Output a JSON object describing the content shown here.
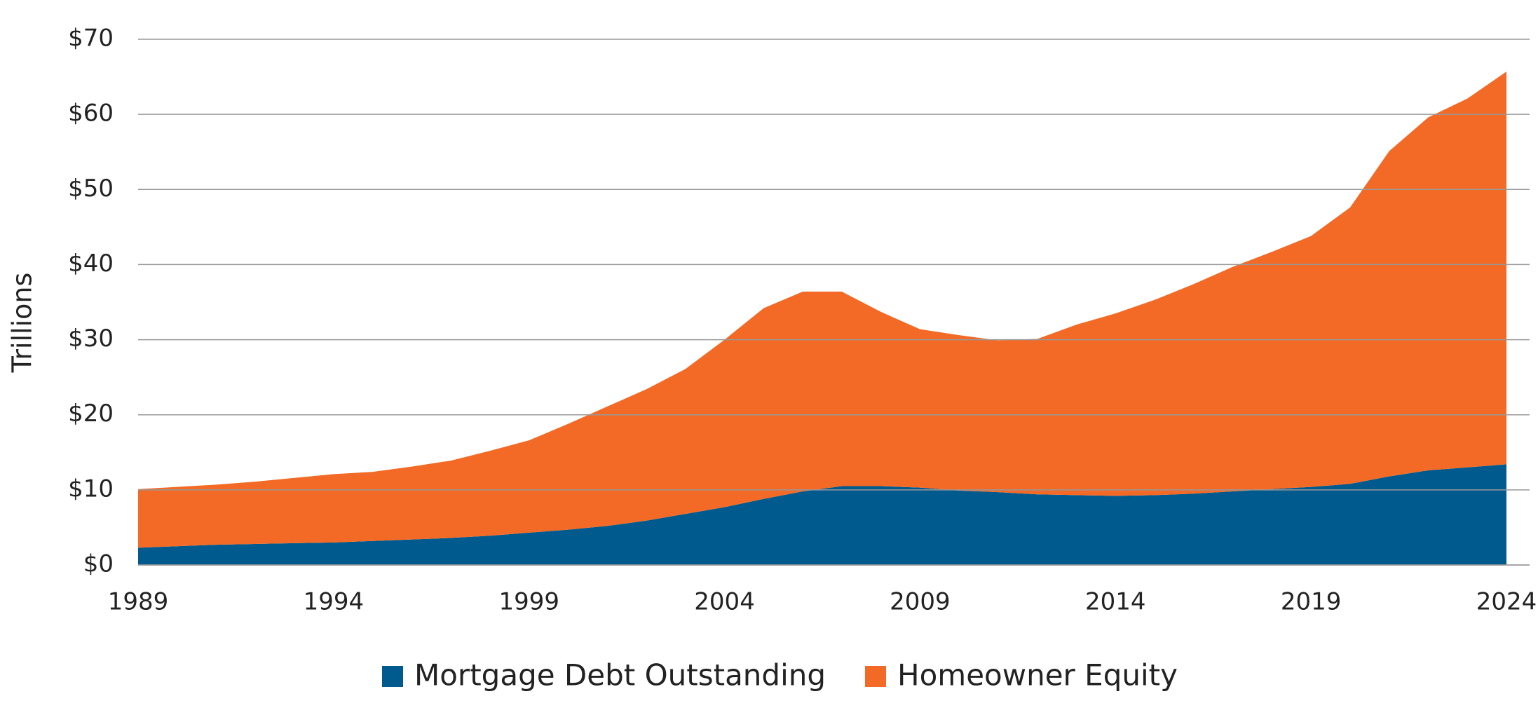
{
  "chart_data": {
    "type": "stacked-area",
    "y_label": "Trillions",
    "x": [
      1989,
      1990,
      1991,
      1992,
      1993,
      1994,
      1995,
      1996,
      1997,
      1998,
      1999,
      2000,
      2001,
      2002,
      2003,
      2004,
      2005,
      2006,
      2007,
      2008,
      2009,
      2010,
      2011,
      2012,
      2013,
      2014,
      2015,
      2016,
      2017,
      2018,
      2019,
      2020,
      2021,
      2022,
      2023,
      2024
    ],
    "series": [
      {
        "name": "Mortgage Debt Outstanding",
        "color": "#005a8e",
        "values": [
          2.3,
          2.5,
          2.7,
          2.8,
          2.9,
          3.0,
          3.2,
          3.4,
          3.6,
          3.9,
          4.3,
          4.7,
          5.2,
          5.9,
          6.8,
          7.7,
          8.8,
          9.8,
          10.5,
          10.5,
          10.3,
          9.9,
          9.7,
          9.4,
          9.3,
          9.2,
          9.3,
          9.5,
          9.8,
          10.1,
          10.4,
          10.8,
          11.8,
          12.6,
          13.0,
          13.4
        ]
      },
      {
        "name": "Homeowner Equity",
        "color": "#f26a26",
        "values": [
          7.8,
          7.9,
          8.0,
          8.3,
          8.7,
          9.1,
          9.2,
          9.7,
          10.3,
          11.3,
          12.3,
          14.1,
          15.9,
          17.5,
          19.3,
          22.3,
          25.4,
          26.6,
          25.9,
          23.2,
          21.1,
          20.7,
          20.2,
          20.7,
          22.7,
          24.3,
          26.0,
          27.9,
          29.9,
          31.6,
          33.4,
          36.8,
          43.3,
          47.0,
          49.1,
          52.3
        ]
      }
    ],
    "xlim": [
      1989,
      2024
    ],
    "xticks": [
      1989,
      1994,
      1999,
      2004,
      2009,
      2014,
      2019,
      2024
    ],
    "ylim": [
      0,
      70
    ],
    "yticks": [
      {
        "value": 0,
        "label": "$0"
      },
      {
        "value": 10,
        "label": "$10"
      },
      {
        "value": 20,
        "label": "$20"
      },
      {
        "value": 30,
        "label": "$30"
      },
      {
        "value": 40,
        "label": "$40"
      },
      {
        "value": 50,
        "label": "$50"
      },
      {
        "value": 60,
        "label": "$60"
      },
      {
        "value": 70,
        "label": "$70"
      }
    ],
    "grid": true,
    "legend": "bottom"
  }
}
